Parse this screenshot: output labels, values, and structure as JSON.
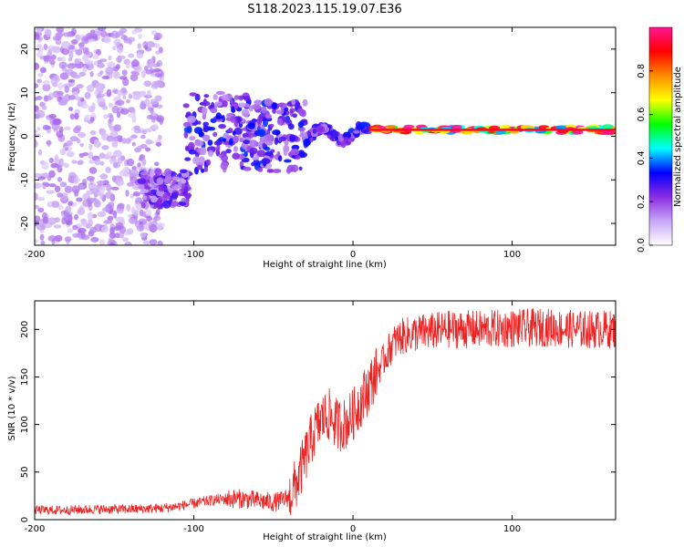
{
  "figure_title": "S118.2023.115.19.07.E36",
  "colors": {
    "snr_line": "#ee2222",
    "background": "#ffffff",
    "axes": "#000000"
  },
  "chart_data": [
    {
      "type": "heatmap",
      "name": "spectrogram",
      "xlabel": "Height of straight line (km)",
      "ylabel": "Frequency (Hz)",
      "xlim": [
        -200,
        165
      ],
      "ylim": [
        -25,
        25
      ],
      "xticks": [
        -200,
        -100,
        0,
        100
      ],
      "yticks": [
        -20,
        -10,
        0,
        10,
        20
      ],
      "colorbar": {
        "label": "Normalized spectral amplitude",
        "range": [
          0.0,
          1.0
        ],
        "ticks": [
          0.0,
          0.2,
          0.4,
          0.6,
          0.8
        ],
        "colormap": [
          "#ffffff",
          "#c7a6f6",
          "#8a2be2",
          "#0000ff",
          "#00ffff",
          "#00ff00",
          "#ffff00",
          "#ff8c00",
          "#ff0000",
          "#ff1493"
        ]
      },
      "features": [
        {
          "description": "scattered noise",
          "x_range": [
            -200,
            -120
          ],
          "y_range": [
            -25,
            25
          ],
          "amplitude": 0.15
        },
        {
          "description": "blob",
          "x_range": [
            -133,
            -103
          ],
          "y_range": [
            -16,
            -8
          ],
          "amplitude": 0.25
        },
        {
          "description": "arc",
          "x_range": [
            -105,
            -65
          ],
          "y_range": [
            -8,
            10
          ],
          "amplitude": 0.3
        },
        {
          "description": "arc",
          "x_range": [
            -65,
            -30
          ],
          "y_range": [
            -8,
            8
          ],
          "amplitude": 0.3
        },
        {
          "description": "wiggle",
          "x_range": [
            -30,
            10
          ],
          "y_range": [
            -2,
            3
          ],
          "amplitude": 0.3
        },
        {
          "description": "carrier line",
          "x_range": [
            10,
            165
          ],
          "y_range": [
            0,
            3
          ],
          "amplitude": 0.95
        }
      ]
    },
    {
      "type": "line",
      "name": "snr",
      "xlabel": "Height of straight line (km)",
      "ylabel": "SNR (10 * v/v)",
      "xlim": [
        -200,
        165
      ],
      "ylim": [
        0,
        230
      ],
      "xticks": [
        -200,
        -100,
        0,
        100
      ],
      "yticks": [
        0,
        50,
        100,
        150,
        200
      ],
      "series": [
        {
          "name": "SNR",
          "x": [
            -200,
            -180,
            -160,
            -140,
            -120,
            -110,
            -100,
            -90,
            -80,
            -70,
            -60,
            -50,
            -45,
            -40,
            -35,
            -30,
            -25,
            -20,
            -15,
            -10,
            -5,
            0,
            5,
            10,
            15,
            20,
            25,
            30,
            40,
            50,
            60,
            80,
            100,
            120,
            140,
            165
          ],
          "y": [
            10,
            10,
            11,
            11,
            12,
            14,
            17,
            20,
            22,
            22,
            20,
            18,
            20,
            24,
            40,
            65,
            90,
            105,
            110,
            100,
            100,
            110,
            125,
            140,
            155,
            170,
            185,
            192,
            196,
            198,
            200,
            200,
            201,
            202,
            200,
            200
          ]
        }
      ]
    }
  ]
}
